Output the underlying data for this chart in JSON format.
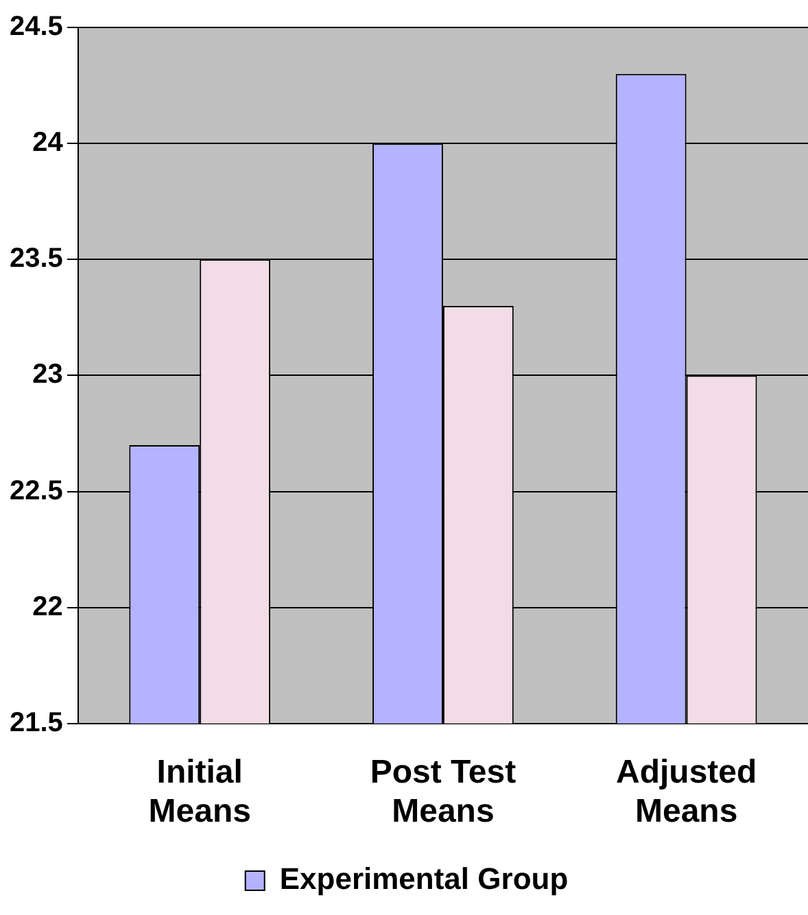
{
  "chart_data": {
    "type": "bar",
    "categories": [
      "Initial Means",
      "Post Test Means",
      "Adjusted Means"
    ],
    "series": [
      {
        "name": "Experimental Group",
        "color": "#b3b3ff",
        "values": [
          22.7,
          24.0,
          24.3
        ]
      },
      {
        "color": "#f2dde6",
        "values": [
          23.5,
          23.3,
          23.0
        ]
      }
    ],
    "ylim": [
      21.5,
      24.5
    ],
    "yticks": [
      21.5,
      22,
      22.5,
      23,
      23.5,
      24,
      24.5
    ],
    "grid": "y",
    "legend": "bottom"
  }
}
